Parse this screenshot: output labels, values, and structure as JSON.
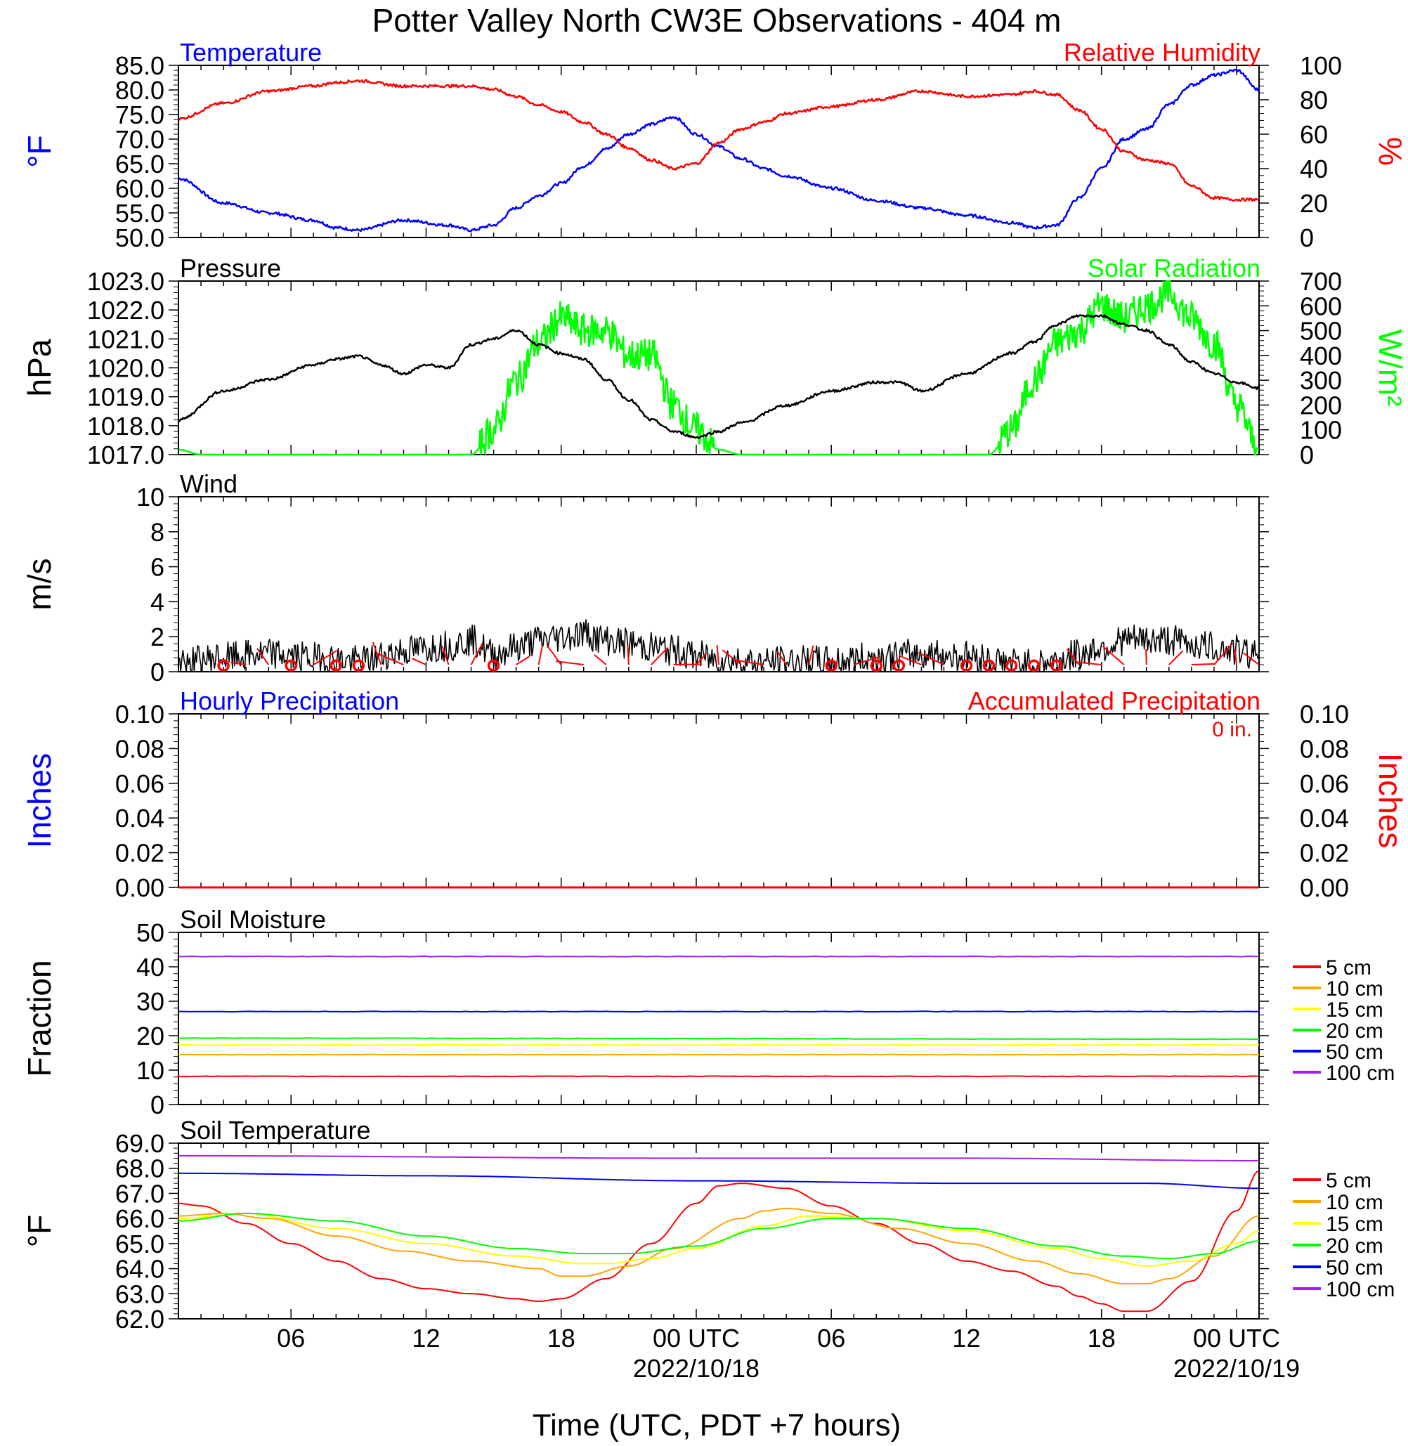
{
  "title": "Potter Valley North CW3E Observations - 404 m",
  "xaxis": {
    "label": "Time (UTC, PDT +7 hours)",
    "ticks": [
      "06",
      "12",
      "18",
      "00 UTC",
      "06",
      "12",
      "18",
      "00 UTC"
    ],
    "dates": [
      "2022/10/18",
      "2022/10/19"
    ]
  },
  "colors": {
    "temperature": "#0000ff",
    "humidity": "#ff0000",
    "pressure": "#000000",
    "solar": "#00ff00",
    "wind": "#000000",
    "wind_barbs": "#ff0000",
    "soil_5": "#ff0000",
    "soil_10": "#ffa500",
    "soil_15": "#ffff00",
    "soil_20": "#00ff00",
    "soil_50": "#0000ff",
    "soil_100": "#a020f0"
  },
  "panels": {
    "temp_rh": {
      "left_title": "Temperature",
      "right_title": "Relative Humidity",
      "left_unit": "°F",
      "right_unit": "%",
      "left_ticks": [
        "85.0",
        "80.0",
        "75.0",
        "70.0",
        "65.0",
        "60.0",
        "55.0",
        "50.0"
      ],
      "right_ticks": [
        "100",
        "80",
        "60",
        "40",
        "20",
        "0"
      ]
    },
    "pressure_solar": {
      "left_title": "Pressure",
      "right_title": "Solar Radiation",
      "left_unit": "hPa",
      "right_unit": "W/m²",
      "left_ticks": [
        "1023.0",
        "1022.0",
        "1021.0",
        "1020.0",
        "1019.0",
        "1018.0",
        "1017.0"
      ],
      "right_ticks": [
        "700",
        "600",
        "500",
        "400",
        "300",
        "200",
        "100",
        "0"
      ]
    },
    "wind": {
      "left_title": "Wind",
      "left_unit": "m/s",
      "left_ticks": [
        "10",
        "8",
        "6",
        "4",
        "2",
        "0"
      ]
    },
    "precip": {
      "left_title": "Hourly Precipitation",
      "right_title": "Accumulated Precipitation",
      "total": "0 in.",
      "left_unit": "Inches",
      "right_unit": "Inches",
      "left_ticks": [
        "0.10",
        "0.08",
        "0.06",
        "0.04",
        "0.02",
        "0.00"
      ],
      "right_ticks": [
        "0.10",
        "0.08",
        "0.06",
        "0.04",
        "0.02",
        "0.00"
      ]
    },
    "soil_moisture": {
      "left_title": "Soil Moisture",
      "left_unit": "Fraction",
      "left_ticks": [
        "50",
        "40",
        "30",
        "20",
        "10",
        "0"
      ]
    },
    "soil_temp": {
      "left_title": "Soil Temperature",
      "left_unit": "°F",
      "left_ticks": [
        "69.0",
        "68.0",
        "67.0",
        "66.0",
        "65.0",
        "64.0",
        "63.0",
        "62.0"
      ]
    }
  },
  "legend": [
    "5 cm",
    "10 cm",
    "15 cm",
    "20 cm",
    "50 cm",
    "100 cm"
  ],
  "chart_data": [
    {
      "type": "line",
      "title": "Temperature / Relative Humidity",
      "x_unit": "hours since 2022-10-17 00 UTC",
      "ylim_left": [
        50,
        85
      ],
      "ylim_right": [
        0,
        100
      ],
      "series": [
        {
          "name": "Temperature",
          "axis": "left",
          "x": [
            1,
            3,
            5,
            7,
            8,
            9,
            11,
            13,
            14,
            15,
            16,
            17,
            18,
            19,
            20,
            21,
            22,
            23,
            24,
            25,
            26,
            27,
            28,
            30,
            32,
            34,
            36,
            38,
            39,
            40,
            41,
            42,
            43,
            44,
            45,
            46,
            47,
            48,
            49
          ],
          "y": [
            62,
            57,
            55,
            53.5,
            52,
            51.5,
            53.5,
            52.5,
            51.5,
            52.5,
            56,
            58.5,
            61,
            64.5,
            68,
            71,
            73,
            74.5,
            71,
            68.5,
            66,
            64,
            62.5,
            60,
            57.5,
            56,
            54.5,
            53,
            52,
            52.5,
            58,
            64,
            70,
            72,
            77,
            81,
            83,
            84,
            80
          ]
        },
        {
          "name": "Relative Humidity",
          "axis": "right",
          "x": [
            1,
            3,
            5,
            7,
            8,
            9,
            11,
            13,
            14,
            15,
            16,
            17,
            18,
            19,
            20,
            21,
            22,
            23,
            24,
            25,
            26,
            27,
            28,
            30,
            32,
            34,
            36,
            38,
            39,
            40,
            41,
            42,
            43,
            44,
            45,
            46,
            47,
            48,
            49
          ],
          "y": [
            69,
            78,
            85,
            88,
            90,
            91,
            88,
            88,
            88,
            86,
            82,
            77,
            73,
            67,
            60,
            52,
            45,
            40,
            43,
            55,
            63,
            67,
            72,
            76,
            80,
            85,
            82,
            83,
            85,
            83,
            74,
            63,
            50,
            45,
            43,
            30,
            23,
            22,
            22
          ]
        }
      ]
    },
    {
      "type": "line",
      "title": "Pressure / Solar Radiation",
      "x_unit": "hours since 2022-10-17 00 UTC",
      "ylim_left": [
        1017,
        1023
      ],
      "ylim_right": [
        0,
        700
      ],
      "series": [
        {
          "name": "Pressure",
          "axis": "left",
          "x": [
            1,
            3,
            5,
            7,
            8,
            9,
            10,
            11,
            12,
            13,
            14,
            15,
            16,
            17,
            18,
            19,
            20,
            21,
            22,
            23,
            24,
            25,
            26,
            28,
            30,
            32,
            33,
            34,
            36,
            38,
            39,
            40,
            41,
            42,
            43,
            44,
            45,
            46,
            47,
            48,
            49
          ],
          "y": [
            1018.2,
            1019.2,
            1019.6,
            1020.1,
            1020.3,
            1020.4,
            1020.1,
            1019.8,
            1020.1,
            1020.0,
            1020.8,
            1021.0,
            1021.3,
            1020.8,
            1020.5,
            1020.3,
            1019.6,
            1018.9,
            1018.2,
            1017.8,
            1017.6,
            1017.8,
            1018.1,
            1018.7,
            1019.2,
            1019.5,
            1019.5,
            1019.2,
            1019.8,
            1020.5,
            1020.9,
            1021.5,
            1021.8,
            1021.8,
            1021.5,
            1021.3,
            1020.8,
            1020.2,
            1019.8,
            1019.5,
            1019.3
          ]
        },
        {
          "name": "Solar Radiation",
          "axis": "right",
          "x": [
            1,
            2,
            14,
            15,
            16,
            17,
            18,
            19,
            20,
            21,
            22,
            23,
            24,
            25,
            26,
            37,
            38,
            39,
            40,
            41,
            42,
            43,
            44,
            45,
            46,
            47,
            48,
            49
          ],
          "y": [
            20,
            0,
            0,
            100,
            300,
            450,
            550,
            500,
            500,
            400,
            400,
            200,
            100,
            20,
            0,
            0,
            100,
            300,
            450,
            500,
            600,
            550,
            600,
            650,
            550,
            450,
            200,
            20
          ]
        }
      ]
    },
    {
      "type": "line",
      "title": "Wind",
      "x_unit": "hours since 2022-10-17 00 UTC",
      "ylim": [
        0,
        10
      ],
      "series": [
        {
          "name": "Wind speed",
          "x": [
            1,
            3,
            5,
            7,
            9,
            11,
            13,
            14,
            15,
            16,
            17,
            18,
            19,
            20,
            21,
            22,
            23,
            24,
            25,
            26,
            27,
            28,
            30,
            32,
            34,
            36,
            38,
            39,
            40,
            41,
            42,
            43,
            44,
            45,
            46,
            47,
            48,
            49
          ],
          "y": [
            0.5,
            0.8,
            1.0,
            0.8,
            0.6,
            1.2,
            1.5,
            1.8,
            1.0,
            1.4,
            1.8,
            2.0,
            2.2,
            1.8,
            1.6,
            1.4,
            1.2,
            0.9,
            0.7,
            0.6,
            0.5,
            0.6,
            0.6,
            0.8,
            1.0,
            0.9,
            0.5,
            0.4,
            0.6,
            1.0,
            1.4,
            1.8,
            1.8,
            1.8,
            1.6,
            1.4,
            1.2,
            1.0
          ]
        }
      ]
    },
    {
      "type": "line",
      "title": "Hourly Precipitation / Accumulated Precipitation",
      "x_unit": "hours since 2022-10-17 00 UTC",
      "ylim": [
        0,
        0.1
      ],
      "series": [
        {
          "name": "Hourly Precipitation",
          "x": [
            1,
            49
          ],
          "y": [
            0,
            0
          ]
        },
        {
          "name": "Accumulated Precipitation",
          "x": [
            1,
            49
          ],
          "y": [
            0,
            0
          ]
        }
      ]
    },
    {
      "type": "line",
      "title": "Soil Moisture",
      "x_unit": "hours since 2022-10-17 00 UTC",
      "ylim": [
        0,
        50
      ],
      "series": [
        {
          "name": "5 cm",
          "x": [
            1,
            49
          ],
          "y": [
            8.2,
            8.2
          ]
        },
        {
          "name": "10 cm",
          "x": [
            1,
            49
          ],
          "y": [
            14.5,
            14.5
          ]
        },
        {
          "name": "15 cm",
          "x": [
            1,
            49
          ],
          "y": [
            17.3,
            17.3
          ]
        },
        {
          "name": "20 cm",
          "x": [
            1,
            49
          ],
          "y": [
            19.3,
            19.0
          ]
        },
        {
          "name": "50 cm",
          "x": [
            1,
            49
          ],
          "y": [
            27.0,
            27.0
          ]
        },
        {
          "name": "100 cm",
          "x": [
            1,
            49
          ],
          "y": [
            43.0,
            43.0
          ]
        }
      ]
    },
    {
      "type": "line",
      "title": "Soil Temperature",
      "x_unit": "hours since 2022-10-17 00 UTC",
      "ylim": [
        62,
        69
      ],
      "series": [
        {
          "name": "5 cm",
          "x": [
            1,
            2,
            4,
            6,
            8,
            10,
            12,
            14,
            16,
            17,
            18,
            20,
            22,
            24,
            25,
            26,
            28,
            30,
            32,
            34,
            36,
            38,
            40,
            41,
            42,
            43,
            44,
            46,
            48,
            49
          ],
          "y": [
            66.6,
            66.5,
            65.8,
            65.0,
            64.3,
            63.6,
            63.2,
            63.0,
            62.8,
            62.7,
            62.8,
            63.6,
            65.0,
            66.6,
            67.3,
            67.4,
            67.2,
            66.5,
            65.8,
            65.0,
            64.3,
            63.9,
            63.3,
            62.9,
            62.6,
            62.3,
            62.3,
            63.5,
            66.3,
            67.9
          ]
        },
        {
          "name": "10 cm",
          "x": [
            1,
            3,
            5,
            8,
            11,
            14,
            17,
            18,
            19,
            21,
            23,
            26,
            27,
            28,
            30,
            33,
            36,
            39,
            41,
            43,
            44,
            45,
            47,
            49
          ],
          "y": [
            66.1,
            66.2,
            66.0,
            65.3,
            64.7,
            64.3,
            64.0,
            63.7,
            63.7,
            64.1,
            64.8,
            66.0,
            66.3,
            66.4,
            66.2,
            65.6,
            65.0,
            64.3,
            63.8,
            63.4,
            63.4,
            63.6,
            64.5,
            66.1
          ]
        },
        {
          "name": "15 cm",
          "x": [
            1,
            4,
            8,
            12,
            16,
            19,
            20,
            22,
            24,
            27,
            29,
            32,
            36,
            40,
            42,
            44,
            46,
            48,
            49
          ],
          "y": [
            66.0,
            66.2,
            65.6,
            65.0,
            64.5,
            64.2,
            64.2,
            64.4,
            64.8,
            65.7,
            66.1,
            66.0,
            65.5,
            64.8,
            64.4,
            64.1,
            64.3,
            65.0,
            65.5
          ]
        },
        {
          "name": "20 cm",
          "x": [
            1,
            4,
            8,
            12,
            16,
            19,
            21,
            24,
            27,
            30,
            32,
            36,
            40,
            43,
            45,
            47,
            49
          ],
          "y": [
            65.9,
            66.2,
            65.9,
            65.3,
            64.8,
            64.6,
            64.6,
            64.9,
            65.6,
            66.0,
            66.0,
            65.6,
            64.9,
            64.5,
            64.4,
            64.6,
            65.1
          ]
        },
        {
          "name": "50 cm",
          "x": [
            1,
            12,
            24,
            36,
            44,
            49
          ],
          "y": [
            67.8,
            67.7,
            67.5,
            67.4,
            67.4,
            67.2
          ]
        },
        {
          "name": "100 cm",
          "x": [
            1,
            24,
            36,
            49
          ],
          "y": [
            68.5,
            68.4,
            68.4,
            68.3
          ]
        }
      ]
    }
  ]
}
